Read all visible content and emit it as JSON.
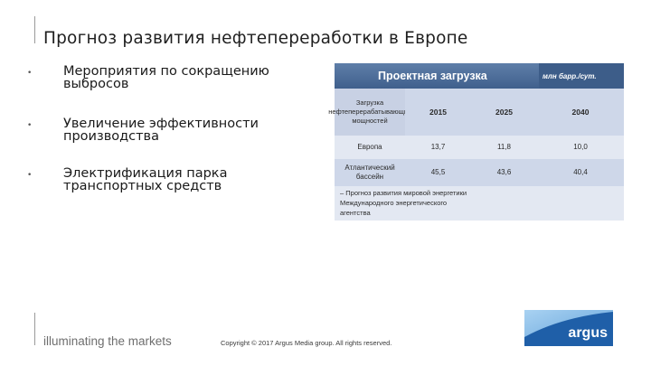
{
  "slide": {
    "title": "Прогноз развития нефтепереработки в Европе"
  },
  "bullets": [
    {
      "text": "Мероприятия по сокращению выбросов"
    },
    {
      "text": "Увеличение эффективности производства"
    },
    {
      "text": "Электрификация парка транспортных средств"
    }
  ],
  "table": {
    "header": "Проектная загрузка",
    "unit": "млн барр./сут.",
    "row_header": "Загрузка нефтеперерабатывающих мощностей",
    "years": [
      "2015",
      "2025",
      "2040"
    ],
    "rows": [
      {
        "label": "Европа",
        "values": [
          "13,7",
          "11,8",
          "10,0"
        ]
      },
      {
        "label": "Атлантический бассейн",
        "values": [
          "45,5",
          "43,6",
          "40,4"
        ]
      }
    ],
    "note": "– Прогноз развития мировой энергетики Международного энергетического агентства"
  },
  "footer": {
    "tagline": "illuminating the markets",
    "copyright": "Copyright © 2017 Argus Media group. All rights reserved.",
    "logo_text": "argus"
  },
  "colors": {
    "table_header": "#4a6a96",
    "table_row_dark": "#ced7e9",
    "table_row_light": "#e3e8f2",
    "logo_light": "#7fb6e6",
    "logo_dark": "#1f5fa8"
  }
}
